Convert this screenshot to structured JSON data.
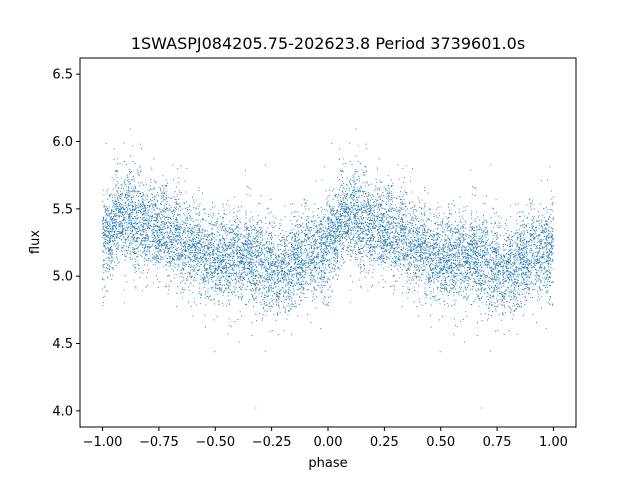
{
  "chart_data": {
    "type": "scatter",
    "title": "1SWASPJ084205.75-202623.8 Period 3739601.0s",
    "xlabel": "phase",
    "ylabel": "flux",
    "xlim": [
      -1.1,
      1.1
    ],
    "ylim": [
      3.88,
      6.62
    ],
    "xticks": [
      "−1.00",
      "−0.75",
      "−0.50",
      "−0.25",
      "0.00",
      "0.25",
      "0.50",
      "0.75",
      "1.00"
    ],
    "xtick_values": [
      -1.0,
      -0.75,
      -0.5,
      -0.25,
      0.0,
      0.25,
      0.5,
      0.75,
      1.0
    ],
    "yticks": [
      "4.0",
      "4.5",
      "5.0",
      "5.5",
      "6.0",
      "6.5"
    ],
    "ytick_values": [
      4.0,
      4.5,
      5.0,
      5.5,
      6.0,
      6.5
    ],
    "grid": false,
    "point_color": "#1f77b4",
    "profile": {
      "phase": [
        0.0,
        0.05,
        0.1,
        0.15,
        0.2,
        0.25,
        0.3,
        0.35,
        0.4,
        0.45,
        0.5,
        0.55,
        0.6,
        0.65,
        0.7,
        0.75,
        0.8,
        0.85,
        0.9,
        0.95,
        1.0
      ],
      "flux": [
        5.22,
        5.38,
        5.45,
        5.42,
        5.38,
        5.33,
        5.32,
        5.27,
        5.22,
        5.17,
        5.13,
        5.12,
        5.14,
        5.15,
        5.1,
        5.06,
        5.05,
        5.08,
        5.15,
        5.2,
        5.22
      ]
    }
  }
}
